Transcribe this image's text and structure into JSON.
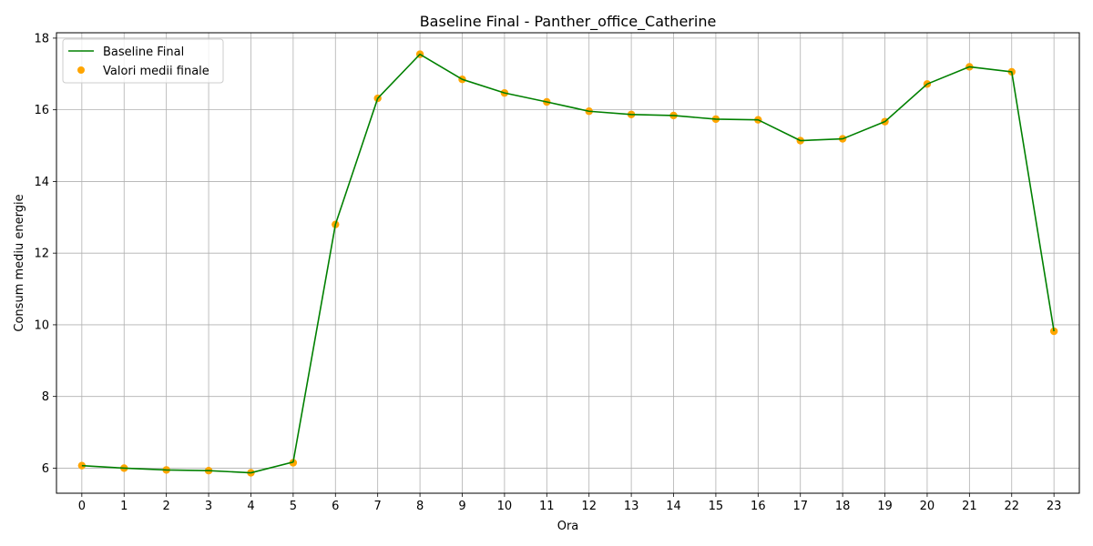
{
  "chart_data": {
    "type": "line",
    "title": "Baseline Final - Panther_office_Catherine",
    "xlabel": "Ora",
    "ylabel": "Consum mediu energie",
    "x": [
      0,
      1,
      2,
      3,
      4,
      5,
      6,
      7,
      8,
      9,
      10,
      11,
      12,
      13,
      14,
      15,
      16,
      17,
      18,
      19,
      20,
      21,
      22,
      23
    ],
    "x_tick_labels": [
      "0",
      "1",
      "2",
      "3",
      "4",
      "5",
      "6",
      "7",
      "8",
      "9",
      "10",
      "11",
      "12",
      "13",
      "14",
      "15",
      "16",
      "17",
      "18",
      "19",
      "20",
      "21",
      "22",
      "23"
    ],
    "y_ticks": [
      6,
      8,
      10,
      12,
      14,
      16,
      18
    ],
    "y_tick_labels": [
      "6",
      "8",
      "10",
      "12",
      "14",
      "16",
      "18"
    ],
    "xlim": [
      -0.6,
      23.6
    ],
    "ylim": [
      5.3,
      18.15
    ],
    "grid": true,
    "legend_position": "upper-left",
    "series": [
      {
        "name": "Baseline Final",
        "kind": "line",
        "color": "#008000",
        "values": [
          6.07,
          6.0,
          5.95,
          5.93,
          5.87,
          6.17,
          12.8,
          16.32,
          17.55,
          16.85,
          16.47,
          16.22,
          15.96,
          15.87,
          15.84,
          15.74,
          15.72,
          15.14,
          15.19,
          15.67,
          16.72,
          17.2,
          17.06,
          9.82
        ]
      },
      {
        "name": "Valori medii finale",
        "kind": "scatter",
        "color": "#ffa500",
        "values": [
          6.07,
          6.0,
          5.95,
          5.93,
          5.87,
          6.15,
          12.8,
          16.32,
          17.55,
          16.85,
          16.47,
          16.22,
          15.96,
          15.87,
          15.84,
          15.74,
          15.72,
          15.14,
          15.19,
          15.67,
          16.72,
          17.2,
          17.06,
          9.82
        ]
      }
    ]
  }
}
